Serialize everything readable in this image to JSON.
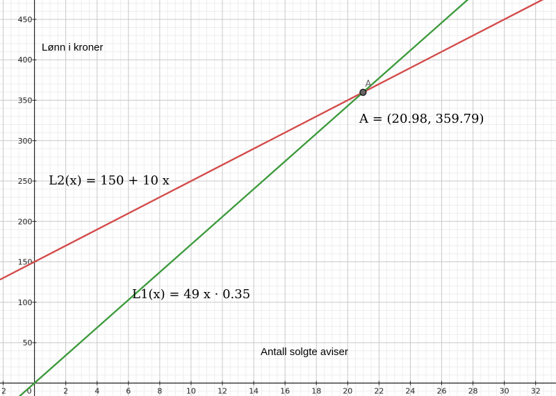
{
  "chart_data": {
    "type": "line",
    "xlabel": "Antall solgte aviser",
    "ylabel": "Lønn i kroner",
    "xlim": [
      -2.2,
      33.3
    ],
    "ylim": [
      -16,
      474
    ],
    "x_ticks": [
      -2,
      0,
      2,
      4,
      6,
      8,
      10,
      12,
      14,
      16,
      18,
      20,
      22,
      24,
      26,
      28,
      30,
      32
    ],
    "x_tick_labels": [
      "2",
      "0",
      "2",
      "4",
      "6",
      "8",
      "10",
      "12",
      "14",
      "16",
      "18",
      "20",
      "22",
      "24",
      "26",
      "28",
      "30",
      "32"
    ],
    "y_ticks": [
      50,
      100,
      150,
      200,
      250,
      300,
      350,
      400,
      450
    ],
    "y_tick_labels": [
      "50",
      "100",
      "150",
      "200",
      "250",
      "300",
      "350",
      "400",
      "450"
    ],
    "grid": true,
    "series": [
      {
        "name": "L2",
        "label": "L2(x)  =  150 + 10 x",
        "intercept": 150,
        "slope": 10,
        "color": "#d44b4b"
      },
      {
        "name": "L1",
        "label": "L1(x)  =  49 x · 0.35",
        "intercept": 0,
        "slope": 17.15,
        "color": "#3c9a3c"
      }
    ],
    "point": {
      "name": "A",
      "x": 20.98,
      "y": 359.79,
      "label": "A  =  (20.98,  359.79)"
    }
  }
}
